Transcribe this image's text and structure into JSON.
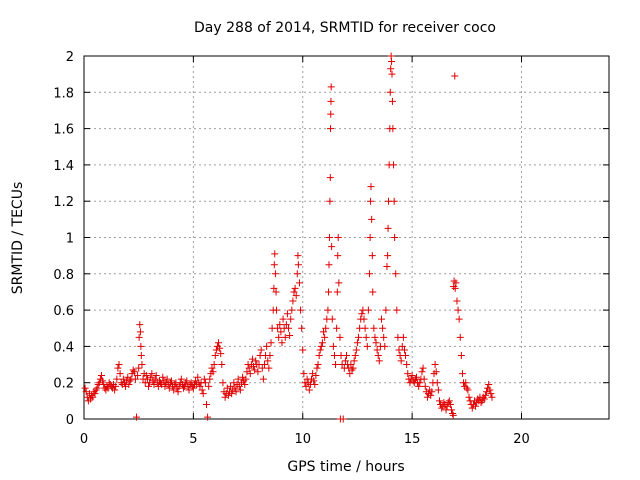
{
  "chart_data": {
    "type": "scatter",
    "title": "Day 288 of 2014, SRMTID for receiver coco",
    "xlabel": "GPS time / hours",
    "ylabel": "SRMTID / TECUs",
    "xlim": [
      0,
      24
    ],
    "ylim": [
      0,
      2
    ],
    "xticks": [
      0,
      5,
      10,
      15,
      20
    ],
    "xtick_labels": [
      "0",
      "5",
      "10",
      "15",
      "20"
    ],
    "yticks": [
      0,
      0.2,
      0.4,
      0.6,
      0.8,
      1,
      1.2,
      1.4,
      1.6,
      1.8,
      2
    ],
    "ytick_labels": [
      "0",
      "0.2",
      "0.4",
      "0.6",
      "0.8",
      "1",
      "1.2",
      "1.4",
      "1.6",
      "1.8",
      "2"
    ],
    "grid": true,
    "marker": "+",
    "color": "#e00000",
    "points": [
      [
        0.05,
        0.17
      ],
      [
        0.1,
        0.15
      ],
      [
        0.15,
        0.12
      ],
      [
        0.2,
        0.1
      ],
      [
        0.25,
        0.14
      ],
      [
        0.3,
        0.11
      ],
      [
        0.35,
        0.13
      ],
      [
        0.4,
        0.12
      ],
      [
        0.45,
        0.15
      ],
      [
        0.5,
        0.14
      ],
      [
        0.55,
        0.16
      ],
      [
        0.6,
        0.17
      ],
      [
        0.65,
        0.19
      ],
      [
        0.7,
        0.2
      ],
      [
        0.75,
        0.22
      ],
      [
        0.8,
        0.24
      ],
      [
        0.85,
        0.21
      ],
      [
        0.9,
        0.19
      ],
      [
        0.95,
        0.17
      ],
      [
        1.0,
        0.16
      ],
      [
        1.05,
        0.18
      ],
      [
        1.1,
        0.17
      ],
      [
        1.15,
        0.2
      ],
      [
        1.2,
        0.19
      ],
      [
        1.25,
        0.18
      ],
      [
        1.3,
        0.17
      ],
      [
        1.35,
        0.19
      ],
      [
        1.4,
        0.16
      ],
      [
        1.45,
        0.18
      ],
      [
        1.5,
        0.22
      ],
      [
        1.55,
        0.28
      ],
      [
        1.6,
        0.3
      ],
      [
        1.65,
        0.25
      ],
      [
        1.7,
        0.2
      ],
      [
        1.75,
        0.19
      ],
      [
        1.8,
        0.22
      ],
      [
        1.85,
        0.2
      ],
      [
        1.9,
        0.18
      ],
      [
        1.95,
        0.21
      ],
      [
        2.0,
        0.23
      ],
      [
        2.05,
        0.19
      ],
      [
        2.1,
        0.21
      ],
      [
        2.15,
        0.22
      ],
      [
        2.2,
        0.25
      ],
      [
        2.25,
        0.27
      ],
      [
        2.3,
        0.26
      ],
      [
        2.35,
        0.22
      ],
      [
        2.4,
        0.01
      ],
      [
        2.45,
        0.24
      ],
      [
        2.5,
        0.28
      ],
      [
        2.52,
        0.45
      ],
      [
        2.55,
        0.52
      ],
      [
        2.58,
        0.48
      ],
      [
        2.6,
        0.4
      ],
      [
        2.62,
        0.35
      ],
      [
        2.65,
        0.3
      ],
      [
        2.7,
        0.22
      ],
      [
        2.75,
        0.25
      ],
      [
        2.8,
        0.2
      ],
      [
        2.85,
        0.24
      ],
      [
        2.9,
        0.22
      ],
      [
        2.95,
        0.18
      ],
      [
        3.0,
        0.2
      ],
      [
        3.05,
        0.23
      ],
      [
        3.1,
        0.25
      ],
      [
        3.15,
        0.21
      ],
      [
        3.2,
        0.19
      ],
      [
        3.25,
        0.22
      ],
      [
        3.3,
        0.24
      ],
      [
        3.35,
        0.2
      ],
      [
        3.4,
        0.18
      ],
      [
        3.45,
        0.21
      ],
      [
        3.5,
        0.2
      ],
      [
        3.55,
        0.19
      ],
      [
        3.6,
        0.23
      ],
      [
        3.65,
        0.21
      ],
      [
        3.7,
        0.18
      ],
      [
        3.75,
        0.2
      ],
      [
        3.8,
        0.22
      ],
      [
        3.85,
        0.19
      ],
      [
        3.9,
        0.17
      ],
      [
        3.95,
        0.2
      ],
      [
        4.0,
        0.21
      ],
      [
        4.05,
        0.18
      ],
      [
        4.1,
        0.16
      ],
      [
        4.15,
        0.19
      ],
      [
        4.2,
        0.2
      ],
      [
        4.25,
        0.17
      ],
      [
        4.3,
        0.15
      ],
      [
        4.35,
        0.18
      ],
      [
        4.4,
        0.2
      ],
      [
        4.45,
        0.22
      ],
      [
        4.5,
        0.19
      ],
      [
        4.55,
        0.17
      ],
      [
        4.6,
        0.18
      ],
      [
        4.65,
        0.2
      ],
      [
        4.7,
        0.21
      ],
      [
        4.75,
        0.18
      ],
      [
        4.8,
        0.16
      ],
      [
        4.85,
        0.19
      ],
      [
        4.9,
        0.2
      ],
      [
        4.95,
        0.18
      ],
      [
        5.0,
        0.17
      ],
      [
        5.05,
        0.19
      ],
      [
        5.1,
        0.21
      ],
      [
        5.15,
        0.19
      ],
      [
        5.2,
        0.23
      ],
      [
        5.25,
        0.2
      ],
      [
        5.3,
        0.18
      ],
      [
        5.35,
        0.2
      ],
      [
        5.4,
        0.16
      ],
      [
        5.45,
        0.14
      ],
      [
        5.5,
        0.22
      ],
      [
        5.55,
        0.2
      ],
      [
        5.6,
        0.08
      ],
      [
        5.65,
        0.01
      ],
      [
        5.7,
        0.18
      ],
      [
        5.75,
        0.22
      ],
      [
        5.8,
        0.25
      ],
      [
        5.85,
        0.28
      ],
      [
        5.9,
        0.26
      ],
      [
        5.95,
        0.3
      ],
      [
        6.0,
        0.35
      ],
      [
        6.05,
        0.38
      ],
      [
        6.1,
        0.4
      ],
      [
        6.15,
        0.42
      ],
      [
        6.2,
        0.39
      ],
      [
        6.25,
        0.36
      ],
      [
        6.3,
        0.3
      ],
      [
        6.35,
        0.2
      ],
      [
        6.4,
        0.15
      ],
      [
        6.45,
        0.12
      ],
      [
        6.5,
        0.14
      ],
      [
        6.55,
        0.17
      ],
      [
        6.6,
        0.13
      ],
      [
        6.65,
        0.15
      ],
      [
        6.7,
        0.18
      ],
      [
        6.75,
        0.14
      ],
      [
        6.8,
        0.16
      ],
      [
        6.85,
        0.2
      ],
      [
        6.9,
        0.17
      ],
      [
        6.95,
        0.15
      ],
      [
        7.0,
        0.19
      ],
      [
        7.05,
        0.22
      ],
      [
        7.1,
        0.18
      ],
      [
        7.15,
        0.16
      ],
      [
        7.2,
        0.2
      ],
      [
        7.25,
        0.23
      ],
      [
        7.3,
        0.21
      ],
      [
        7.35,
        0.19
      ],
      [
        7.4,
        0.22
      ],
      [
        7.45,
        0.26
      ],
      [
        7.5,
        0.3
      ],
      [
        7.55,
        0.28
      ],
      [
        7.6,
        0.25
      ],
      [
        7.65,
        0.3
      ],
      [
        7.7,
        0.33
      ],
      [
        7.75,
        0.29
      ],
      [
        7.8,
        0.27
      ],
      [
        7.85,
        0.32
      ],
      [
        7.9,
        0.3
      ],
      [
        7.95,
        0.26
      ],
      [
        8.0,
        0.3
      ],
      [
        8.05,
        0.35
      ],
      [
        8.1,
        0.38
      ],
      [
        8.15,
        0.28
      ],
      [
        8.2,
        0.22
      ],
      [
        8.25,
        0.3
      ],
      [
        8.3,
        0.35
      ],
      [
        8.35,
        0.4
      ],
      [
        8.4,
        0.32
      ],
      [
        8.45,
        0.28
      ],
      [
        8.5,
        0.35
      ],
      [
        8.55,
        0.42
      ],
      [
        8.6,
        0.5
      ],
      [
        8.65,
        0.6
      ],
      [
        8.68,
        0.72
      ],
      [
        8.7,
        0.85
      ],
      [
        8.72,
        0.91
      ],
      [
        8.75,
        0.8
      ],
      [
        8.78,
        0.7
      ],
      [
        8.8,
        0.6
      ],
      [
        8.85,
        0.5
      ],
      [
        8.9,
        0.45
      ],
      [
        8.95,
        0.52
      ],
      [
        9.0,
        0.48
      ],
      [
        9.05,
        0.42
      ],
      [
        9.1,
        0.55
      ],
      [
        9.15,
        0.5
      ],
      [
        9.2,
        0.45
      ],
      [
        9.25,
        0.52
      ],
      [
        9.3,
        0.58
      ],
      [
        9.35,
        0.5
      ],
      [
        9.4,
        0.46
      ],
      [
        9.45,
        0.55
      ],
      [
        9.5,
        0.6
      ],
      [
        9.55,
        0.65
      ],
      [
        9.6,
        0.7
      ],
      [
        9.65,
        0.72
      ],
      [
        9.7,
        0.68
      ],
      [
        9.75,
        0.8
      ],
      [
        9.78,
        0.9
      ],
      [
        9.8,
        0.85
      ],
      [
        9.85,
        0.75
      ],
      [
        9.9,
        0.6
      ],
      [
        9.95,
        0.5
      ],
      [
        10.0,
        0.38
      ],
      [
        10.05,
        0.25
      ],
      [
        10.1,
        0.2
      ],
      [
        10.15,
        0.18
      ],
      [
        10.2,
        0.22
      ],
      [
        10.25,
        0.2
      ],
      [
        10.3,
        0.16
      ],
      [
        10.35,
        0.19
      ],
      [
        10.4,
        0.22
      ],
      [
        10.45,
        0.25
      ],
      [
        10.5,
        0.21
      ],
      [
        10.55,
        0.19
      ],
      [
        10.6,
        0.24
      ],
      [
        10.65,
        0.28
      ],
      [
        10.7,
        0.3
      ],
      [
        10.75,
        0.35
      ],
      [
        10.8,
        0.38
      ],
      [
        10.85,
        0.4
      ],
      [
        10.9,
        0.42
      ],
      [
        10.95,
        0.48
      ],
      [
        11.0,
        0.45
      ],
      [
        11.05,
        0.5
      ],
      [
        11.1,
        0.55
      ],
      [
        11.15,
        0.6
      ],
      [
        11.18,
        0.7
      ],
      [
        11.2,
        0.85
      ],
      [
        11.22,
        1.0
      ],
      [
        11.24,
        1.2
      ],
      [
        11.26,
        1.33
      ],
      [
        11.27,
        1.6
      ],
      [
        11.28,
        1.68
      ],
      [
        11.29,
        1.75
      ],
      [
        11.3,
        1.83
      ],
      [
        11.32,
        0.95
      ],
      [
        11.35,
        0.55
      ],
      [
        11.4,
        0.4
      ],
      [
        11.45,
        0.35
      ],
      [
        11.5,
        0.3
      ],
      [
        11.55,
        0.5
      ],
      [
        11.58,
        0.7
      ],
      [
        11.6,
        0.9
      ],
      [
        11.62,
        1.0
      ],
      [
        11.65,
        0.75
      ],
      [
        11.7,
        0.45
      ],
      [
        11.72,
        0.0
      ],
      [
        11.75,
        0.35
      ],
      [
        11.8,
        0.3
      ],
      [
        11.85,
        0.0
      ],
      [
        11.9,
        0.28
      ],
      [
        11.95,
        0.32
      ],
      [
        12.0,
        0.35
      ],
      [
        12.05,
        0.3
      ],
      [
        12.1,
        0.28
      ],
      [
        12.15,
        0.25
      ],
      [
        12.2,
        0.3
      ],
      [
        12.25,
        0.27
      ],
      [
        12.3,
        0.28
      ],
      [
        12.35,
        0.32
      ],
      [
        12.4,
        0.35
      ],
      [
        12.45,
        0.38
      ],
      [
        12.5,
        0.42
      ],
      [
        12.55,
        0.45
      ],
      [
        12.6,
        0.5
      ],
      [
        12.65,
        0.55
      ],
      [
        12.7,
        0.58
      ],
      [
        12.75,
        0.6
      ],
      [
        12.8,
        0.55
      ],
      [
        12.85,
        0.5
      ],
      [
        12.9,
        0.45
      ],
      [
        12.95,
        0.4
      ],
      [
        13.0,
        0.6
      ],
      [
        13.05,
        0.8
      ],
      [
        13.08,
        1.0
      ],
      [
        13.1,
        1.2
      ],
      [
        13.12,
        1.28
      ],
      [
        13.15,
        1.1
      ],
      [
        13.18,
        0.9
      ],
      [
        13.2,
        0.7
      ],
      [
        13.25,
        0.5
      ],
      [
        13.3,
        0.45
      ],
      [
        13.35,
        0.42
      ],
      [
        13.4,
        0.38
      ],
      [
        13.45,
        0.35
      ],
      [
        13.5,
        0.32
      ],
      [
        13.55,
        0.4
      ],
      [
        13.6,
        0.55
      ],
      [
        13.65,
        0.5
      ],
      [
        13.7,
        0.45
      ],
      [
        13.75,
        0.4
      ],
      [
        13.8,
        0.6
      ],
      [
        13.85,
        0.84
      ],
      [
        13.88,
        0.9
      ],
      [
        13.9,
        1.05
      ],
      [
        13.92,
        1.2
      ],
      [
        13.95,
        1.4
      ],
      [
        13.98,
        1.6
      ],
      [
        14.0,
        1.8
      ],
      [
        14.02,
        1.93
      ],
      [
        14.04,
        2.0
      ],
      [
        14.06,
        1.97
      ],
      [
        14.08,
        1.9
      ],
      [
        14.1,
        1.75
      ],
      [
        14.12,
        1.6
      ],
      [
        14.15,
        1.4
      ],
      [
        14.18,
        1.2
      ],
      [
        14.2,
        1.0
      ],
      [
        14.25,
        0.8
      ],
      [
        14.3,
        0.6
      ],
      [
        14.35,
        0.45
      ],
      [
        14.4,
        0.38
      ],
      [
        14.45,
        0.35
      ],
      [
        14.5,
        0.32
      ],
      [
        14.55,
        0.4
      ],
      [
        14.6,
        0.45
      ],
      [
        14.65,
        0.38
      ],
      [
        14.7,
        0.35
      ],
      [
        14.75,
        0.3
      ],
      [
        14.8,
        0.25
      ],
      [
        14.85,
        0.22
      ],
      [
        14.9,
        0.2
      ],
      [
        14.95,
        0.22
      ],
      [
        15.0,
        0.24
      ],
      [
        15.05,
        0.21
      ],
      [
        15.1,
        0.2
      ],
      [
        15.15,
        0.22
      ],
      [
        15.2,
        0.23
      ],
      [
        15.25,
        0.2
      ],
      [
        15.3,
        0.18
      ],
      [
        15.35,
        0.2
      ],
      [
        15.4,
        0.22
      ],
      [
        15.45,
        0.26
      ],
      [
        15.5,
        0.28
      ],
      [
        15.55,
        0.22
      ],
      [
        15.6,
        0.18
      ],
      [
        15.65,
        0.15
      ],
      [
        15.7,
        0.12
      ],
      [
        15.75,
        0.14
      ],
      [
        15.8,
        0.16
      ],
      [
        15.85,
        0.13
      ],
      [
        15.9,
        0.15
      ],
      [
        15.95,
        0.2
      ],
      [
        16.0,
        0.25
      ],
      [
        16.05,
        0.3
      ],
      [
        16.1,
        0.26
      ],
      [
        16.15,
        0.2
      ],
      [
        16.2,
        0.16
      ],
      [
        16.25,
        0.1
      ],
      [
        16.3,
        0.08
      ],
      [
        16.35,
        0.06
      ],
      [
        16.4,
        0.07
      ],
      [
        16.45,
        0.09
      ],
      [
        16.5,
        0.08
      ],
      [
        16.55,
        0.05
      ],
      [
        16.6,
        0.07
      ],
      [
        16.65,
        0.09
      ],
      [
        16.7,
        0.1
      ],
      [
        16.75,
        0.08
      ],
      [
        16.8,
        0.05
      ],
      [
        16.85,
        0.03
      ],
      [
        16.88,
        0.02
      ],
      [
        16.9,
        0.73
      ],
      [
        16.92,
        0.76
      ],
      [
        16.95,
        1.89
      ],
      [
        16.97,
        0.72
      ],
      [
        17.0,
        0.75
      ],
      [
        17.05,
        0.65
      ],
      [
        17.1,
        0.6
      ],
      [
        17.15,
        0.55
      ],
      [
        17.2,
        0.45
      ],
      [
        17.25,
        0.35
      ],
      [
        17.3,
        0.25
      ],
      [
        17.35,
        0.2
      ],
      [
        17.4,
        0.18
      ],
      [
        17.45,
        0.2
      ],
      [
        17.5,
        0.17
      ],
      [
        17.55,
        0.16
      ],
      [
        17.6,
        0.12
      ],
      [
        17.65,
        0.1
      ],
      [
        17.7,
        0.08
      ],
      [
        17.75,
        0.06
      ],
      [
        17.8,
        0.08
      ],
      [
        17.85,
        0.1
      ],
      [
        17.9,
        0.07
      ],
      [
        17.95,
        0.09
      ],
      [
        18.0,
        0.11
      ],
      [
        18.05,
        0.1
      ],
      [
        18.1,
        0.12
      ],
      [
        18.15,
        0.09
      ],
      [
        18.2,
        0.1
      ],
      [
        18.25,
        0.12
      ],
      [
        18.3,
        0.11
      ],
      [
        18.35,
        0.13
      ],
      [
        18.4,
        0.15
      ],
      [
        18.45,
        0.17
      ],
      [
        18.5,
        0.19
      ],
      [
        18.55,
        0.16
      ],
      [
        18.6,
        0.14
      ],
      [
        18.65,
        0.12
      ]
    ]
  }
}
